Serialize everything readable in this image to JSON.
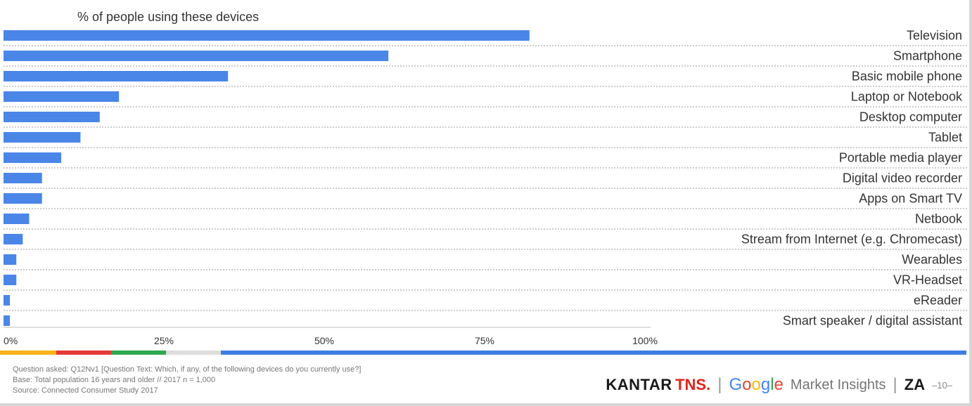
{
  "chart_data": {
    "type": "bar",
    "orientation": "horizontal",
    "title": "% of people using these devices",
    "categories": [
      "Television",
      "Smartphone",
      "Basic mobile phone",
      "Laptop or Notebook",
      "Desktop computer",
      "Tablet",
      "Portable media player",
      "Digital video recorder",
      "Apps on Smart TV",
      "Netbook",
      "Stream from Internet (e.g. Chromecast)",
      "Wearables",
      "VR-Headset",
      "eReader",
      "Smart speaker / digital assistant"
    ],
    "values": [
      82,
      60,
      35,
      18,
      15,
      12,
      9,
      6,
      6,
      4,
      3,
      2,
      2,
      1,
      1
    ],
    "xlim": [
      0,
      100
    ],
    "xticks": [
      "0%",
      "25%",
      "50%",
      "75%",
      "100%"
    ],
    "xtick_values": [
      0,
      25,
      50,
      75,
      100
    ],
    "bar_color": "#4a86e8",
    "grid": "dotted-row-separators"
  },
  "footer": {
    "line1": "Question asked: Q12Nv1 [Question Text: Which, if any, of the following devices do you currently use?]",
    "line2": "Base: Total population 16 years and older // 2017 n = 1,000",
    "line3": "Source: Connected Consumer Study 2017"
  },
  "brand": {
    "kantar": "KANTAR",
    "tns": "TNS.",
    "separator": "|",
    "google_letters": [
      "G",
      "o",
      "o",
      "g",
      "l",
      "e"
    ],
    "google_colors": [
      "#4285f4",
      "#ea4335",
      "#fbbc05",
      "#4285f4",
      "#34a853",
      "#ea4335"
    ],
    "market_insights": "Market Insights",
    "country": "ZA",
    "page_number": "–10–"
  },
  "stripe_colors": [
    "#f6b21a",
    "#e53935",
    "#2fa84f",
    "#dddddd",
    "#3d7fe0"
  ]
}
